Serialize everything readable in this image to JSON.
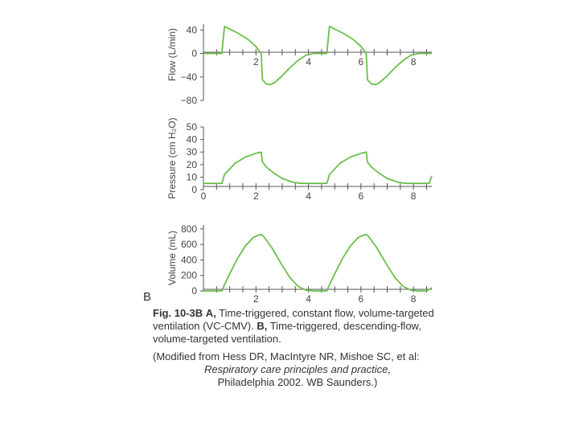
{
  "chart_data": [
    {
      "type": "line",
      "panel": "flow",
      "ylabel": "Flow (L/min)",
      "yticks": [
        40,
        0,
        -40,
        -80
      ],
      "ylim": [
        -80,
        50
      ],
      "xticks": [
        2,
        4,
        6,
        8
      ],
      "xlim": [
        0,
        8.7
      ],
      "color": "#6cbf4a",
      "series": [
        {
          "name": "Flow",
          "x": [
            0,
            0.5,
            0.7,
            0.8,
            1.3,
            1.7,
            2.0,
            2.2,
            2.25,
            2.4,
            2.55,
            2.7,
            3.0,
            3.3,
            3.6,
            3.9,
            4.2,
            4.5,
            4.7,
            4.8,
            5.3,
            5.7,
            6.0,
            6.2,
            6.25,
            6.4,
            6.55,
            6.7,
            7.0,
            7.3,
            7.6,
            7.9,
            8.2,
            8.7
          ],
          "y": [
            0,
            0,
            0,
            46,
            35,
            24,
            12,
            0,
            -45,
            -52,
            -53,
            -50,
            -38,
            -24,
            -12,
            -3,
            0,
            0,
            0,
            46,
            35,
            24,
            12,
            0,
            -45,
            -52,
            -53,
            -50,
            -38,
            -24,
            -12,
            -3,
            0,
            0
          ]
        }
      ]
    },
    {
      "type": "line",
      "panel": "pressure",
      "ylabel": "Pressure (cm H₂O)",
      "yticks": [
        50,
        40,
        30,
        20,
        10,
        0
      ],
      "ylim": [
        0,
        50
      ],
      "xticks": [
        0,
        2,
        4,
        6,
        8
      ],
      "xlim": [
        0,
        8.7
      ],
      "color": "#6cbf4a",
      "series": [
        {
          "name": "Pressure",
          "x": [
            0,
            0.5,
            0.7,
            0.8,
            1.2,
            1.6,
            2.0,
            2.2,
            2.25,
            2.4,
            2.7,
            3.0,
            3.4,
            3.7,
            4.0,
            4.4,
            4.7,
            4.8,
            5.2,
            5.6,
            6.0,
            6.2,
            6.25,
            6.4,
            6.7,
            7.0,
            7.4,
            7.7,
            8.0,
            8.4,
            8.6,
            8.7
          ],
          "y": [
            5,
            5,
            5,
            12,
            21,
            26,
            29,
            30,
            22,
            18,
            13,
            9,
            6,
            5,
            5,
            5,
            5,
            12,
            21,
            26,
            29,
            30,
            22,
            18,
            13,
            9,
            6,
            5,
            5,
            5,
            5,
            11
          ]
        }
      ]
    },
    {
      "type": "line",
      "panel": "volume",
      "ylabel": "Volume (mL)",
      "yticks": [
        800,
        600,
        400,
        200,
        0
      ],
      "ylim": [
        0,
        850
      ],
      "xticks": [
        2,
        4,
        6,
        8
      ],
      "xlim": [
        0,
        8.7
      ],
      "color": "#6cbf4a",
      "series": [
        {
          "name": "Volume",
          "x": [
            0,
            0.5,
            0.7,
            0.8,
            1.0,
            1.3,
            1.6,
            1.9,
            2.1,
            2.2,
            2.3,
            2.6,
            3.0,
            3.3,
            3.6,
            3.9,
            4.2,
            4.5,
            4.7,
            4.8,
            5.0,
            5.3,
            5.6,
            5.9,
            6.1,
            6.2,
            6.3,
            6.6,
            7.0,
            7.3,
            7.6,
            7.9,
            8.2,
            8.5,
            8.7
          ],
          "y": [
            0,
            0,
            0,
            80,
            220,
            420,
            580,
            690,
            720,
            730,
            700,
            560,
            330,
            170,
            60,
            10,
            0,
            0,
            0,
            80,
            220,
            420,
            580,
            690,
            720,
            730,
            700,
            560,
            330,
            170,
            60,
            10,
            0,
            0,
            40
          ]
        }
      ]
    }
  ],
  "panel_letter": "B",
  "caption": {
    "fig_label": "Fig. 10-3B",
    "a_bold": "A,",
    "a_text": "Time-triggered, constant flow, volume-targeted ventilation (VC-CMV).",
    "b_bold": "B,",
    "b_text": "Time-triggered, descending-flow, volume-targeted ventilation.",
    "source_line1": "(Modified from Hess DR, MacIntyre NR, Mishoe SC, et al:",
    "source_book": "Respiratory care principles and practice,",
    "source_line3": "Philadelphia 2002. WB Saunders.)"
  }
}
